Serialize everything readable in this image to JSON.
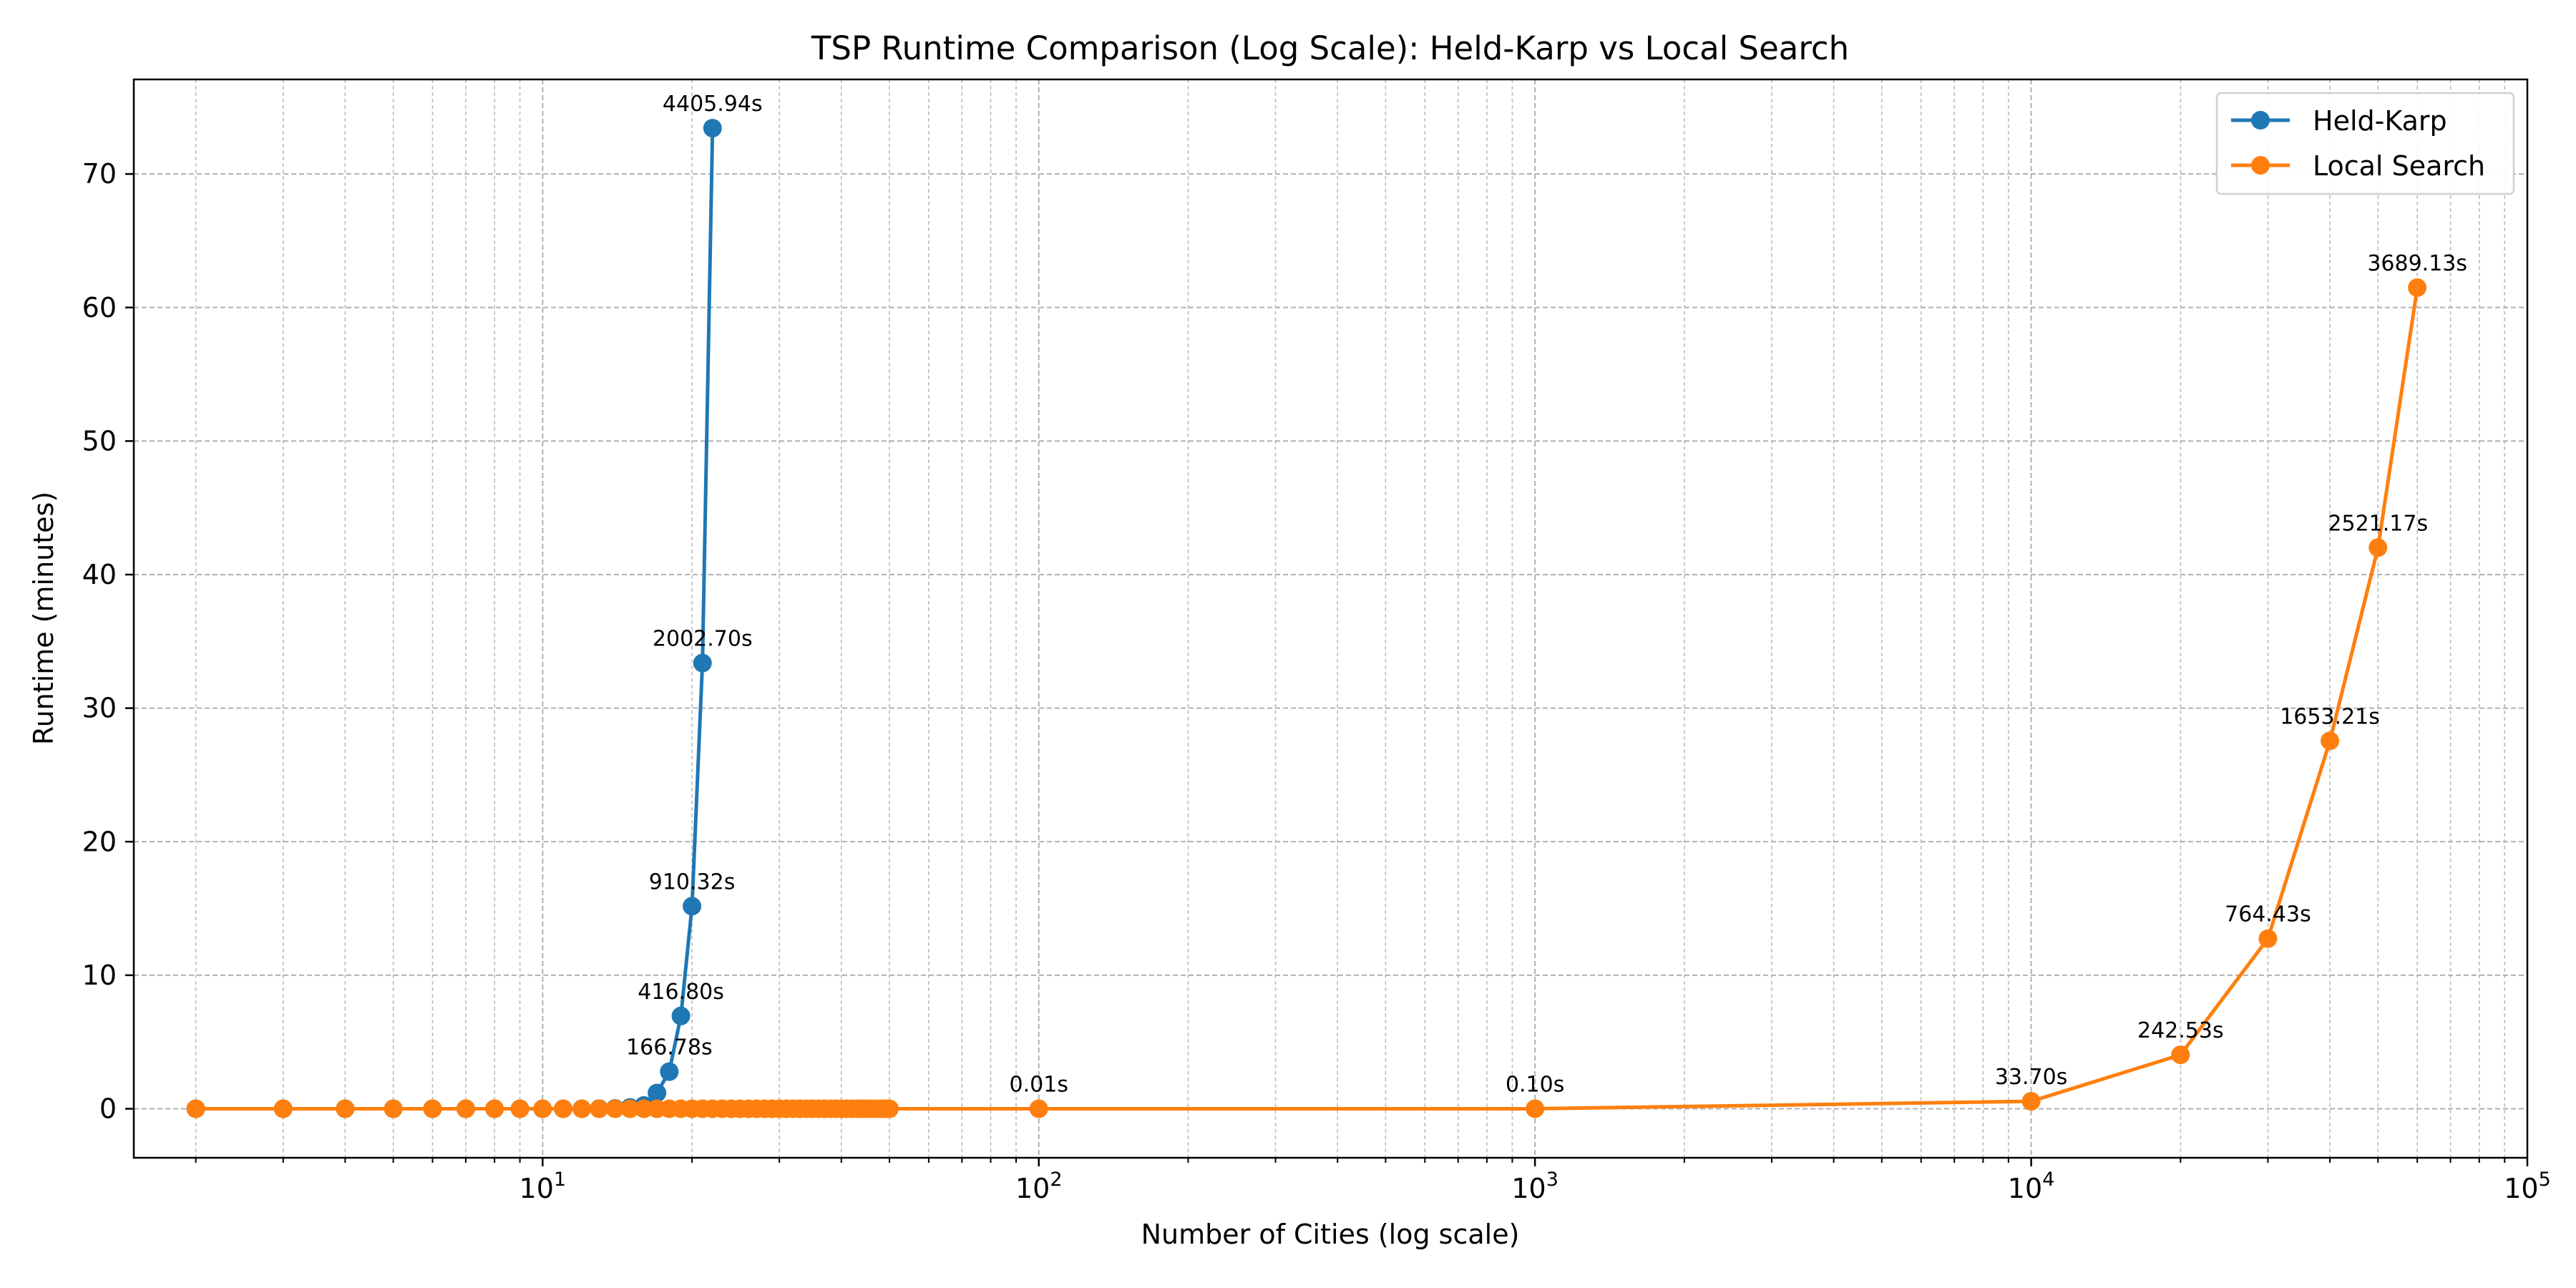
{
  "chart_data": {
    "type": "line",
    "title": "TSP Runtime Comparison (Log Scale): Held-Karp vs Local Search",
    "xlabel": "Number of Cities (log scale)",
    "ylabel": "Runtime (minutes)",
    "xscale": "log",
    "xlim": [
      1.5,
      100000
    ],
    "ylim": [
      -3.67,
      77.08
    ],
    "grid": true,
    "legend_position": "upper right",
    "x_ticks": [
      {
        "base": "10",
        "exp": "1",
        "value": 10
      },
      {
        "base": "10",
        "exp": "2",
        "value": 100
      },
      {
        "base": "10",
        "exp": "3",
        "value": 1000
      },
      {
        "base": "10",
        "exp": "4",
        "value": 10000
      },
      {
        "base": "10",
        "exp": "5",
        "value": 100000
      }
    ],
    "y_ticks": [
      "0",
      "10",
      "20",
      "30",
      "40",
      "50",
      "60",
      "70"
    ],
    "series": [
      {
        "name": "Held-Karp",
        "color": "#1f77b4",
        "x": [
          2,
          3,
          4,
          5,
          6,
          7,
          8,
          9,
          10,
          11,
          12,
          13,
          14,
          15,
          16,
          17,
          18,
          19,
          20,
          21,
          22
        ],
        "y": [
          0,
          0,
          0,
          0,
          0,
          0,
          0,
          0,
          0,
          0,
          0,
          0.01,
          0.03,
          0.1,
          0.25,
          1.18,
          2.78,
          6.95,
          15.17,
          33.38,
          73.43
        ],
        "annotations": [
          {
            "index": 16,
            "label": "166.78s"
          },
          {
            "index": 17,
            "label": "416.80s"
          },
          {
            "index": 18,
            "label": "910.32s"
          },
          {
            "index": 19,
            "label": "2002.70s"
          },
          {
            "index": 20,
            "label": "4405.94s"
          }
        ]
      },
      {
        "name": "Local Search",
        "color": "#ff7f0e",
        "x": [
          2,
          3,
          4,
          5,
          6,
          7,
          8,
          9,
          10,
          11,
          12,
          13,
          14,
          15,
          16,
          17,
          18,
          19,
          20,
          21,
          22,
          23,
          24,
          25,
          26,
          27,
          28,
          29,
          30,
          31,
          32,
          33,
          34,
          35,
          36,
          37,
          38,
          39,
          40,
          41,
          42,
          43,
          44,
          45,
          46,
          47,
          48,
          49,
          50,
          100,
          1000,
          10000,
          20000,
          30000,
          40000,
          50000,
          60000
        ],
        "y": [
          0,
          0,
          0,
          0,
          0,
          0,
          0,
          0,
          0,
          0,
          0,
          0,
          0,
          0,
          0,
          0,
          0,
          0,
          0,
          0,
          0,
          0,
          0,
          0,
          0,
          0,
          0,
          0,
          0,
          0,
          0,
          0,
          0,
          0,
          0,
          0,
          0,
          0,
          0,
          0,
          0,
          0,
          0,
          0,
          0,
          0,
          0,
          0,
          0,
          0.0002,
          0.0017,
          0.56,
          4.04,
          12.74,
          27.55,
          42.02,
          61.49
        ],
        "annotations": [
          {
            "index": 49,
            "label": "0.01s"
          },
          {
            "index": 50,
            "label": "0.10s"
          },
          {
            "index": 51,
            "label": "33.70s"
          },
          {
            "index": 52,
            "label": "242.53s"
          },
          {
            "index": 53,
            "label": "764.43s"
          },
          {
            "index": 54,
            "label": "1653.21s"
          },
          {
            "index": 55,
            "label": "2521.17s"
          },
          {
            "index": 56,
            "label": "3689.13s"
          }
        ]
      }
    ]
  }
}
